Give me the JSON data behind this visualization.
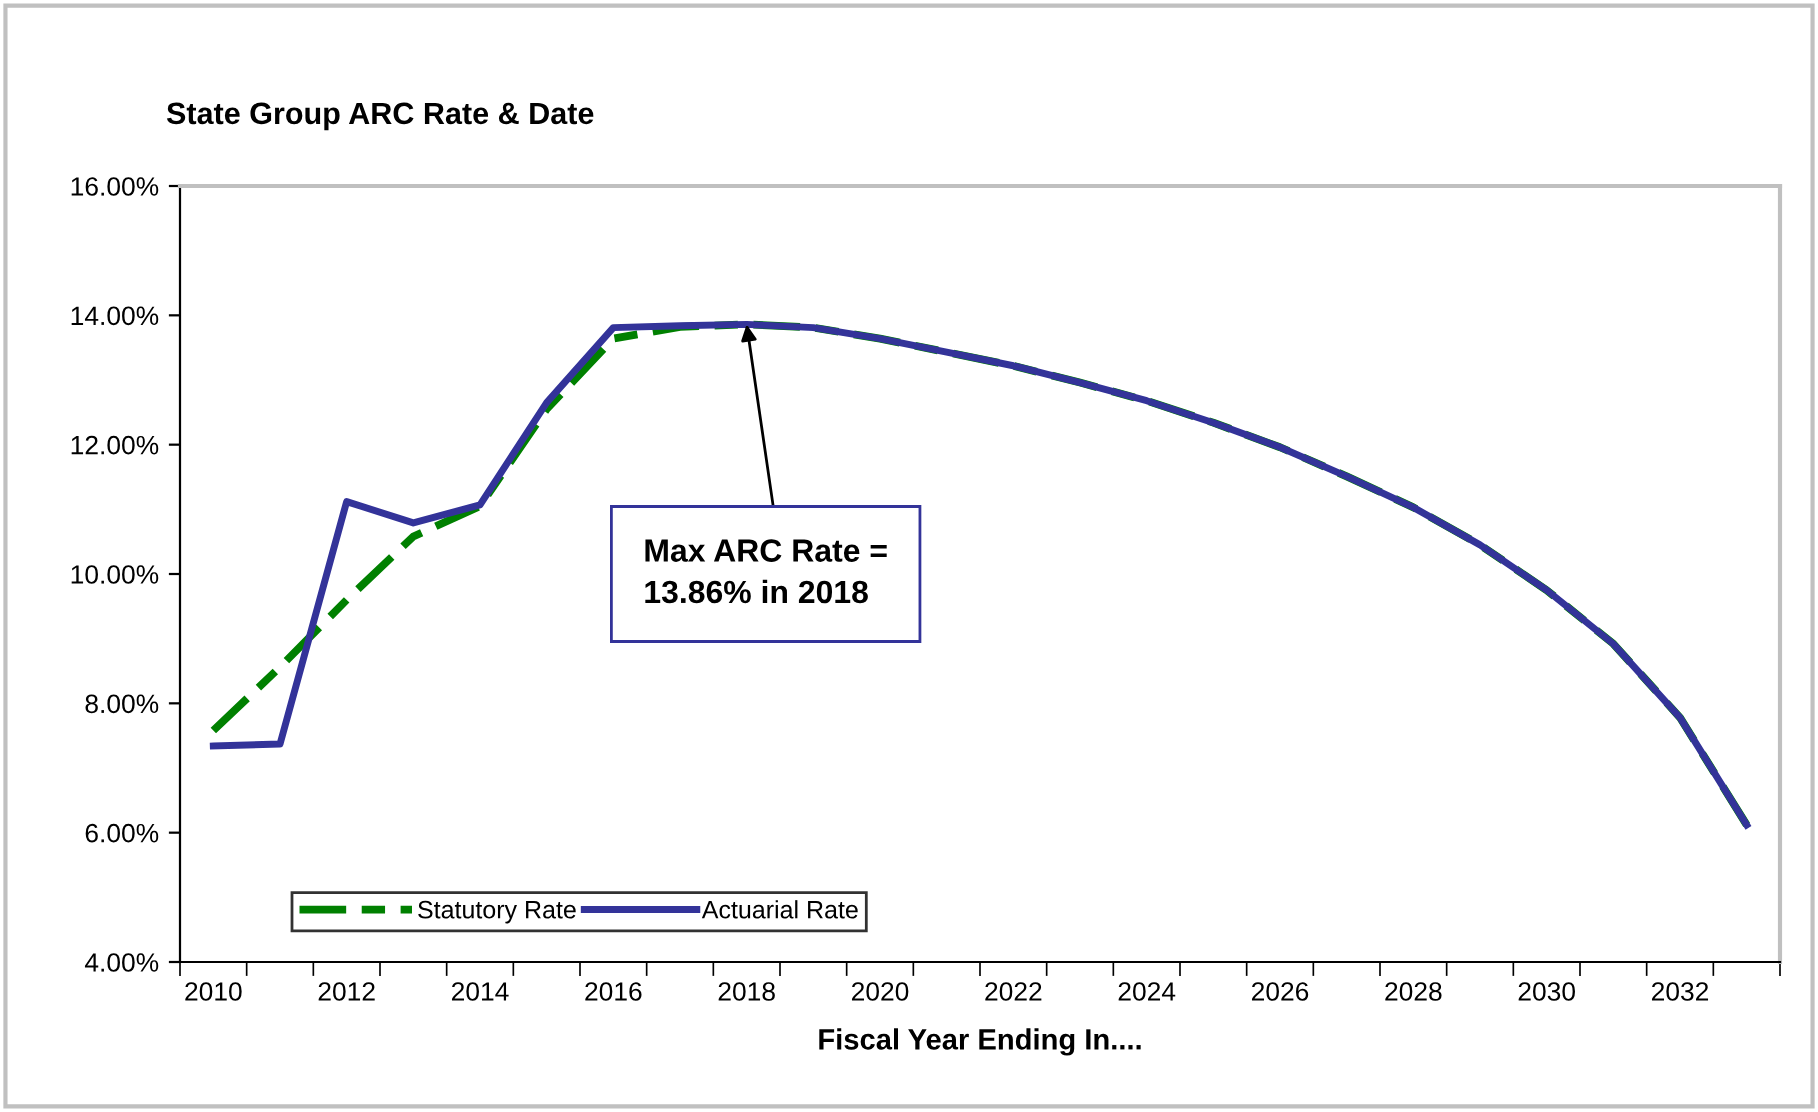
{
  "chart_data": {
    "type": "line",
    "title": "State Group ARC Rate & Date",
    "xlabel": "Fiscal Year Ending In....",
    "categories": [
      "2010",
      null,
      "2012",
      null,
      "2014",
      null,
      "2016",
      null,
      "2018",
      null,
      "2020",
      null,
      "2022",
      null,
      "2024",
      null,
      "2026",
      null,
      "2028",
      null,
      "2030",
      null,
      "2032",
      null
    ],
    "series": [
      {
        "name": "Statutory Rate",
        "color": "#008000",
        "line_style": "dashed",
        "values": [
          7.58,
          8.56,
          9.6,
          10.58,
          11.05,
          12.55,
          13.64,
          13.82,
          13.86,
          13.81,
          13.64,
          13.43,
          13.22,
          12.96,
          12.68,
          12.34,
          11.96,
          11.51,
          11.03,
          10.45,
          9.75,
          8.92,
          7.78,
          6.12
        ]
      },
      {
        "name": "Actuarial Rate",
        "color": "#333399",
        "line_style": "solid",
        "values": [
          7.34,
          7.37,
          11.12,
          10.79,
          11.07,
          12.65,
          13.81,
          13.84,
          13.86,
          13.81,
          13.64,
          13.43,
          13.22,
          12.96,
          12.68,
          12.34,
          11.96,
          11.51,
          11.03,
          10.45,
          9.75,
          8.92,
          7.78,
          6.12
        ]
      }
    ],
    "ylim": [
      4,
      16
    ],
    "yticks": [
      {
        "value": 4,
        "label": "4.00%"
      },
      {
        "value": 6,
        "label": "6.00%"
      },
      {
        "value": 8,
        "label": "8.00%"
      },
      {
        "value": 10,
        "label": "10.00%"
      },
      {
        "value": 12,
        "label": "12.00%"
      },
      {
        "value": 14,
        "label": "14.00%"
      },
      {
        "value": 16,
        "label": "16.00%"
      }
    ],
    "annotations": [
      {
        "text": "Max ARC Rate =\n13.86% in 2018",
        "x": "2018",
        "y": 13.86
      }
    ],
    "legend": "bottom left",
    "grid": false
  }
}
